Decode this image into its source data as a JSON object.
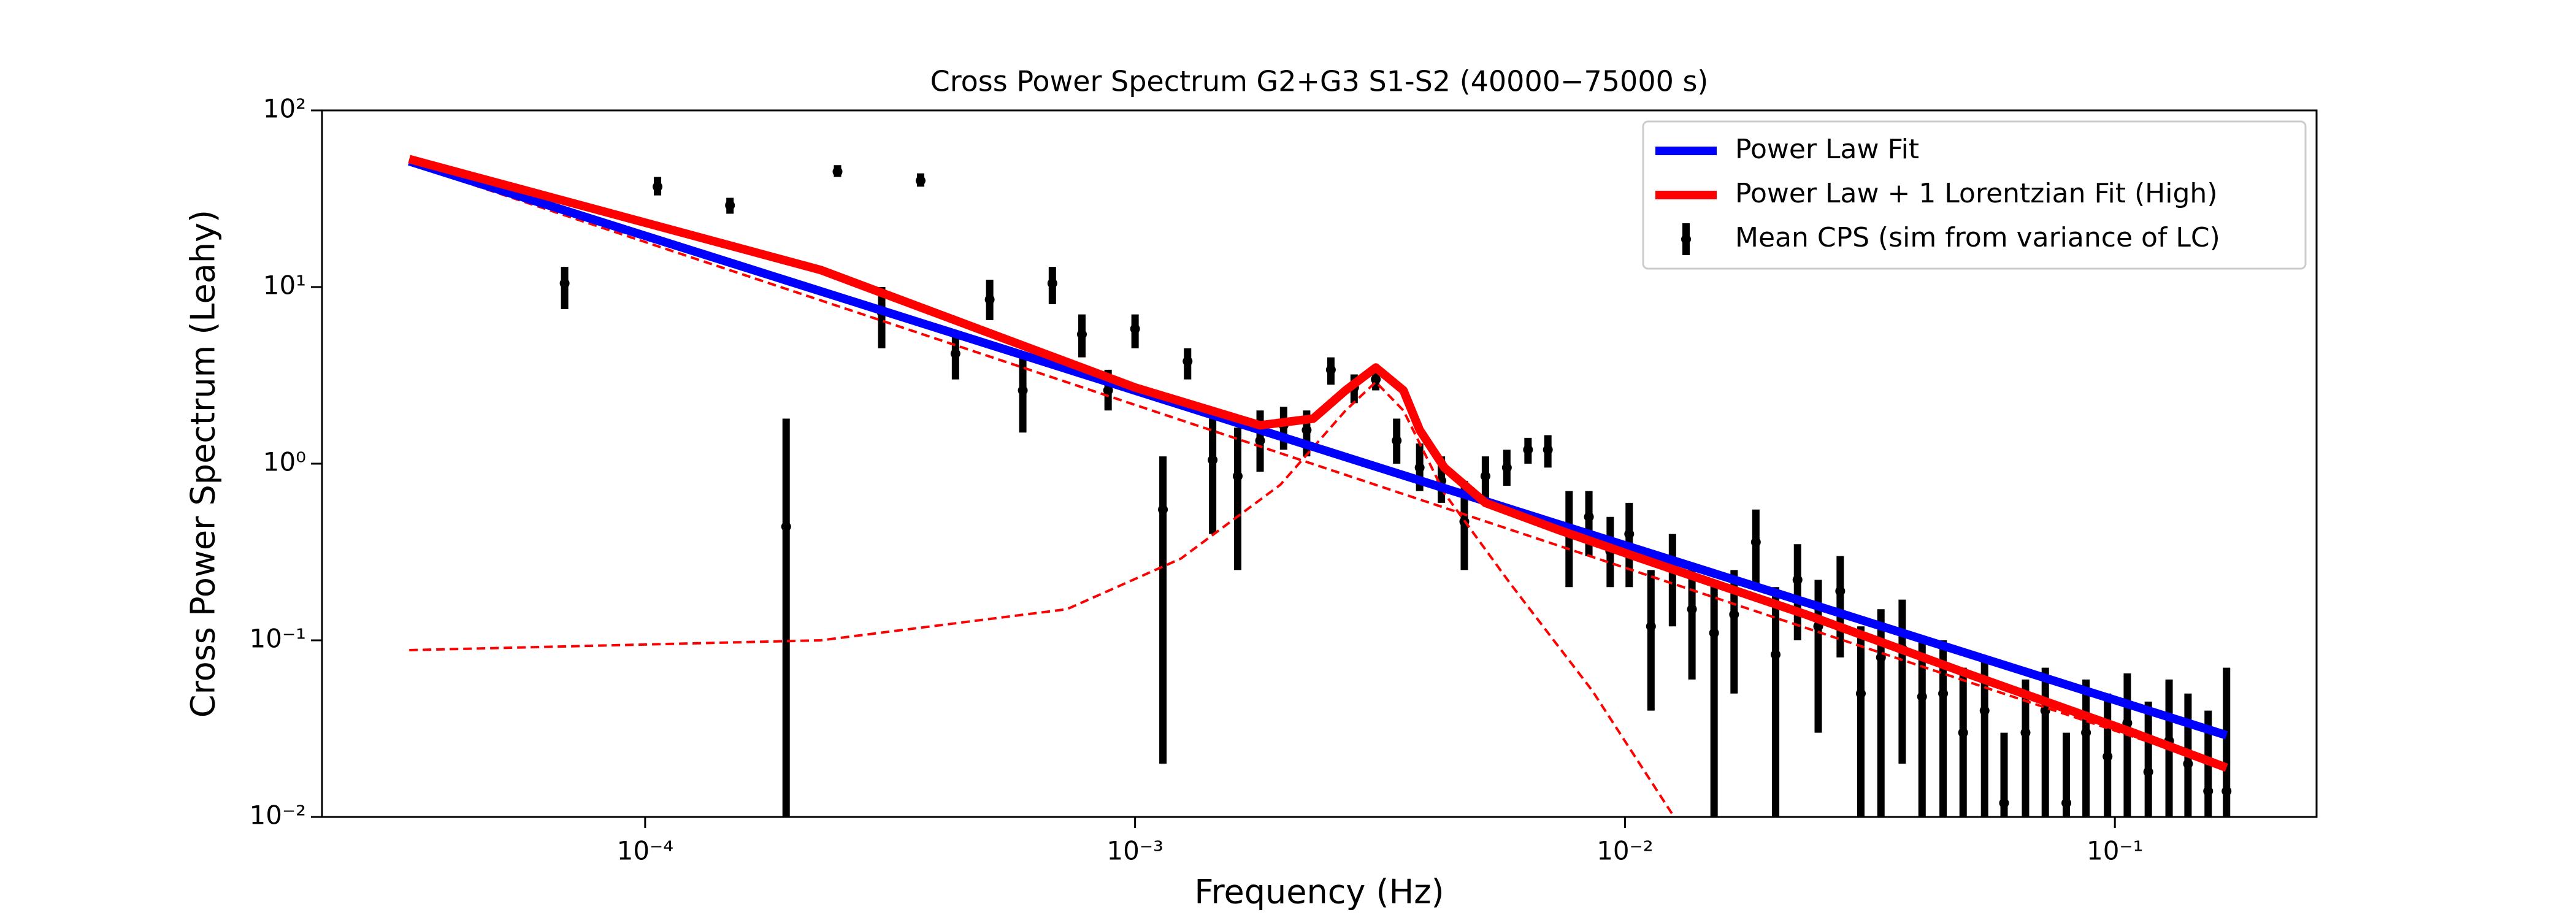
{
  "chart_data": {
    "type": "line",
    "title": "Cross Power Spectrum G2+G3 S1-S2 (40000−75000 s)",
    "xlabel": "Frequency (Hz)",
    "ylabel": "Cross Power Spectrum (Leahy)",
    "xscale": "log",
    "yscale": "log",
    "xlim": [
      2.19e-05,
      0.258
    ],
    "ylim": [
      0.01,
      100
    ],
    "xticks": [
      {
        "value": 0.0001,
        "label": "10⁻⁴"
      },
      {
        "value": 0.001,
        "label": "10⁻³"
      },
      {
        "value": 0.01,
        "label": "10⁻²"
      },
      {
        "value": 0.1,
        "label": "10⁻¹"
      }
    ],
    "yticks": [
      {
        "value": 0.01,
        "label": "10⁻²"
      },
      {
        "value": 0.1,
        "label": "10⁻¹"
      },
      {
        "value": 1,
        "label": "10⁰"
      },
      {
        "value": 10,
        "label": "10¹"
      },
      {
        "value": 100,
        "label": "10²"
      }
    ],
    "legend": "upper right",
    "series": [
      {
        "name": "Power Law Fit",
        "color": "#0000ff",
        "x": [
          3.3e-05,
          0.169
        ],
        "values": [
          51.5,
          0.029
        ]
      },
      {
        "name": "Power Law + 1 Lorentzian Fit (High)",
        "color": "#ff0000",
        "x": [
          3.3e-05,
          0.000228,
          0.001,
          0.0018,
          0.00231,
          0.00269,
          0.0031,
          0.00353,
          0.00381,
          0.00428,
          0.00519,
          0.00735,
          0.0108,
          0.0234,
          0.0506,
          0.109,
          0.169
        ],
        "values": [
          53,
          12.5,
          2.7,
          1.65,
          1.8,
          2.6,
          3.5,
          2.6,
          1.55,
          0.95,
          0.6,
          0.42,
          0.29,
          0.14,
          0.064,
          0.03,
          0.019
        ]
      },
      {
        "color": "#ff0000",
        "dashed": true,
        "x": [
          3.3e-05,
          0.169
        ],
        "values": [
          50,
          0.019
        ]
      },
      {
        "color": "#ff0000",
        "dashed": true,
        "x": [
          3.3e-05,
          0.000228,
          0.000726,
          0.00124,
          0.00198,
          0.00269,
          0.0031,
          0.00353,
          0.00428,
          0.00583,
          0.00857,
          0.0126
        ],
        "values": [
          0.088,
          0.1,
          0.15,
          0.29,
          0.76,
          2.0,
          2.9,
          2.0,
          0.68,
          0.21,
          0.052,
          0.01
        ]
      },
      {
        "name": "Mean CPS (sim from variance of LC)",
        "color": "#000000",
        "type": "errorbar",
        "x": [
          6.85e-05,
          0.000106,
          0.000149,
          0.000194,
          0.000247,
          0.000304,
          0.000365,
          0.00043,
          0.000505,
          0.00059,
          0.000678,
          0.000779,
          0.000881,
          0.001,
          0.00114,
          0.00128,
          0.00144,
          0.00162,
          0.0018,
          0.00201,
          0.00224,
          0.00251,
          0.0028,
          0.0031,
          0.00342,
          0.00381,
          0.00422,
          0.0047,
          0.00519,
          0.00574,
          0.00634,
          0.00696,
          0.00769,
          0.00844,
          0.00933,
          0.0102,
          0.0113,
          0.0125,
          0.0137,
          0.0152,
          0.0167,
          0.0185,
          0.0203,
          0.0225,
          0.0248,
          0.0275,
          0.0303,
          0.0333,
          0.0368,
          0.0404,
          0.0446,
          0.049,
          0.0542,
          0.0594,
          0.0657,
          0.0721,
          0.0796,
          0.0873,
          0.0966,
          0.106,
          0.117,
          0.129,
          0.141,
          0.155,
          0.169
        ],
        "values": [
          10.5,
          37,
          29,
          0.44,
          45,
          7.2,
          40,
          4.2,
          8.5,
          2.6,
          10.5,
          5.4,
          2.6,
          5.8,
          0.55,
          3.8,
          1.05,
          0.85,
          1.35,
          1.65,
          1.55,
          3.4,
          2.7,
          3.0,
          1.35,
          0.95,
          0.8,
          0.47,
          0.85,
          0.95,
          1.2,
          1.2,
          0.4,
          0.5,
          0.32,
          0.4,
          0.12,
          0.26,
          0.15,
          0.11,
          0.14,
          0.36,
          0.083,
          0.22,
          0.12,
          0.19,
          0.05,
          0.08,
          0.09,
          0.048,
          0.05,
          0.03,
          0.04,
          0.012,
          0.03,
          0.04,
          0.012,
          0.03,
          0.022,
          0.034,
          0.018,
          0.027,
          0.02,
          0.014,
          0.014
        ],
        "lower": [
          7.5,
          33,
          26,
          0.005,
          42,
          4.5,
          37,
          3,
          6.5,
          1.5,
          8,
          4,
          2,
          4.5,
          0.02,
          3,
          0.4,
          0.25,
          0.9,
          1.2,
          1.1,
          2.8,
          2.2,
          2.6,
          1.0,
          0.7,
          0.6,
          0.25,
          0.6,
          0.75,
          1.0,
          0.95,
          0.2,
          0.3,
          0.2,
          0.2,
          0.04,
          0.12,
          0.06,
          0.01,
          0.05,
          0.2,
          0.01,
          0.1,
          0.03,
          0.08,
          0.005,
          0.01,
          0.02,
          0.005,
          0.01,
          0.005,
          0.005,
          0.005,
          0.005,
          0.01,
          0.005,
          0.005,
          0.005,
          0.01,
          0.005,
          0.005,
          0.005,
          0.005,
          0.005
        ],
        "upper": [
          13,
          42,
          32,
          1.8,
          49,
          10,
          44,
          5.5,
          11,
          4.3,
          13,
          7,
          3.4,
          7,
          1.1,
          4.5,
          1.8,
          1.6,
          2,
          2.1,
          2,
          4,
          3.2,
          3.5,
          1.8,
          1.3,
          1.1,
          0.8,
          1.1,
          1.2,
          1.4,
          1.45,
          0.7,
          0.7,
          0.5,
          0.6,
          0.25,
          0.4,
          0.27,
          0.22,
          0.25,
          0.55,
          0.2,
          0.35,
          0.22,
          0.3,
          0.12,
          0.15,
          0.17,
          0.1,
          0.1,
          0.07,
          0.08,
          0.03,
          0.06,
          0.07,
          0.03,
          0.06,
          0.05,
          0.065,
          0.045,
          0.06,
          0.05,
          0.04,
          0.07
        ]
      }
    ]
  }
}
